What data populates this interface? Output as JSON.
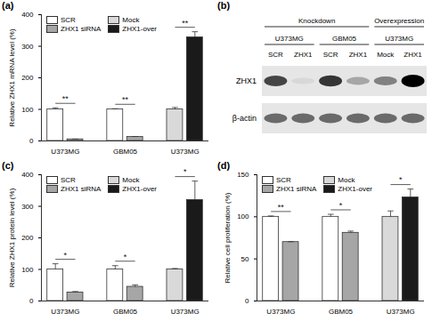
{
  "chart_data": [
    {
      "type": "bar",
      "title": "(a)",
      "y_label": "Relative ZHX1 mRNA level (%)",
      "categories": [
        "U373MG",
        "GBM05",
        "U373MG"
      ],
      "ylim": [
        0,
        400
      ],
      "yticks": [
        0,
        100,
        200,
        300,
        400
      ],
      "series": [
        {
          "name": "SCR",
          "color": "#ffffff",
          "values": [
            100,
            100,
            null
          ],
          "errors": [
            5,
            2,
            null
          ]
        },
        {
          "name": "ZHX1 siRNA",
          "color": "#a6a6a6",
          "values": [
            5,
            13,
            null
          ],
          "errors": [
            1,
            1,
            null
          ]
        },
        {
          "name": "Mock",
          "color": "#d9d9d9",
          "values": [
            null,
            null,
            100
          ],
          "errors": [
            null,
            null,
            6
          ]
        },
        {
          "name": "ZHX1-over",
          "color": "#1a1a1a",
          "values": [
            null,
            null,
            328
          ],
          "errors": [
            null,
            null,
            18
          ]
        }
      ],
      "significance": [
        "**",
        "**",
        "**"
      ],
      "legend": "top-left"
    },
    {
      "type": "blot",
      "title": "(b)",
      "groups": [
        {
          "label": "Knockdown",
          "cell_lines": [
            {
              "name": "U373MG",
              "lanes": [
                "SCR",
                "ZHX1"
              ]
            },
            {
              "name": "GBM05",
              "lanes": [
                "SCR",
                "ZHX1"
              ]
            }
          ]
        },
        {
          "label": "Overexpression",
          "cell_lines": [
            {
              "name": "U373MG",
              "lanes": [
                "Mock",
                "ZHX1"
              ]
            }
          ]
        }
      ],
      "rows": [
        {
          "name": "ZHX1",
          "intensity": [
            0.75,
            0.12,
            0.8,
            0.35,
            0.5,
            1.0
          ]
        },
        {
          "name": "β-actin",
          "intensity": [
            0.6,
            0.6,
            0.6,
            0.6,
            0.6,
            0.6
          ]
        }
      ]
    },
    {
      "type": "bar",
      "title": "(c)",
      "y_label": "Relative ZHX1 protein level (%)",
      "categories": [
        "U373MG",
        "GBM05",
        "U373MG"
      ],
      "ylim": [
        0,
        400
      ],
      "yticks": [
        0,
        100,
        200,
        300,
        400
      ],
      "series": [
        {
          "name": "SCR",
          "color": "#ffffff",
          "values": [
            100,
            100,
            null
          ],
          "errors": [
            18,
            12,
            null
          ]
        },
        {
          "name": "ZHX1 siRNA",
          "color": "#a6a6a6",
          "values": [
            27,
            45,
            null
          ],
          "errors": [
            3,
            6,
            null
          ]
        },
        {
          "name": "Mock",
          "color": "#d9d9d9",
          "values": [
            null,
            null,
            100
          ],
          "errors": [
            null,
            null,
            3
          ]
        },
        {
          "name": "ZHX1-over",
          "color": "#1a1a1a",
          "values": [
            null,
            null,
            320
          ],
          "errors": [
            null,
            null,
            60
          ]
        }
      ],
      "significance": [
        "*",
        "*",
        "*"
      ],
      "legend": "top-left"
    },
    {
      "type": "bar",
      "title": "(d)",
      "y_label": "Relative cell proliferation (%)",
      "categories": [
        "U373MG",
        "GBM05",
        "U373MG"
      ],
      "ylim": [
        0,
        150
      ],
      "yticks": [
        0,
        50,
        100,
        150
      ],
      "series": [
        {
          "name": "SCR",
          "color": "#ffffff",
          "values": [
            100,
            100,
            null
          ],
          "errors": [
            1,
            3,
            null
          ]
        },
        {
          "name": "ZHX1 siRNA",
          "color": "#a6a6a6",
          "values": [
            70,
            81,
            null
          ],
          "errors": [
            0.5,
            2,
            null
          ]
        },
        {
          "name": "Mock",
          "color": "#d9d9d9",
          "values": [
            null,
            null,
            100
          ],
          "errors": [
            null,
            null,
            7
          ]
        },
        {
          "name": "ZHX1-over",
          "color": "#1a1a1a",
          "values": [
            null,
            null,
            123
          ],
          "errors": [
            null,
            null,
            10
          ]
        }
      ],
      "significance": [
        "**",
        "*",
        "*"
      ],
      "legend": "top-left"
    }
  ]
}
